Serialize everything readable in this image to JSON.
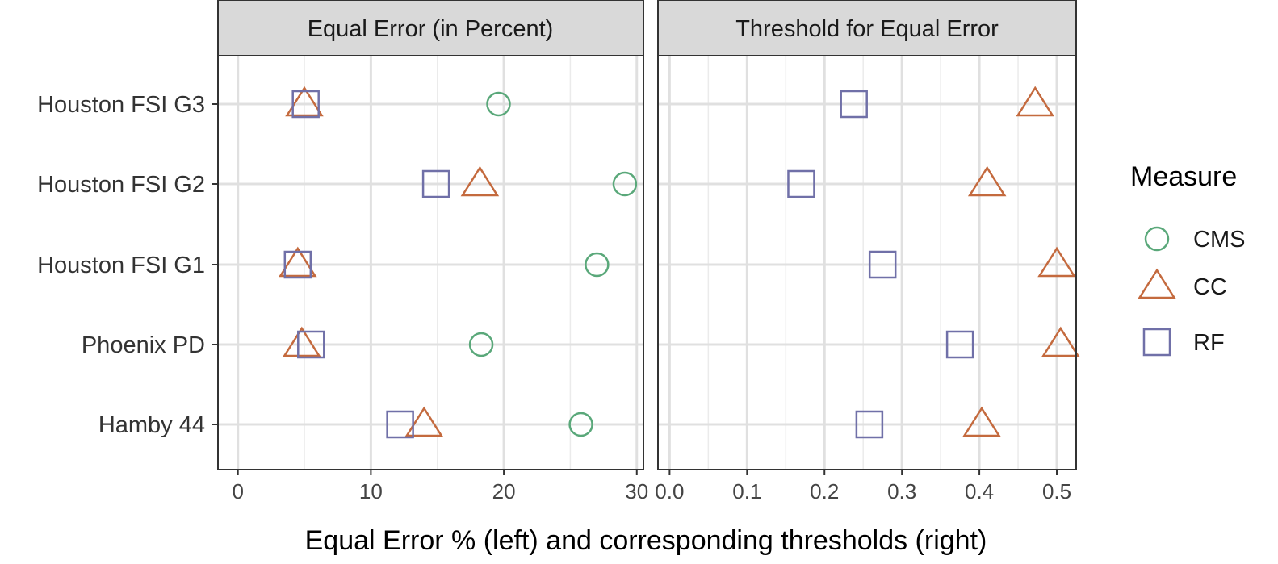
{
  "chart_data": {
    "type": "scatter",
    "panels": [
      {
        "title": "Equal Error (in Percent)",
        "xlim": [
          -1.5,
          30.5
        ],
        "ticks": [
          {
            "value": 0,
            "label": "0"
          },
          {
            "value": 10,
            "label": "10"
          },
          {
            "value": 20,
            "label": "20"
          },
          {
            "value": 30,
            "label": "30"
          }
        ],
        "minor_ticks": [
          5,
          15,
          25
        ],
        "series": [
          {
            "name": "CMS",
            "values": [
              25.8,
              18.3,
              27.0,
              29.1,
              19.6
            ]
          },
          {
            "name": "CC",
            "values": [
              14.0,
              4.8,
              4.5,
              18.2,
              5.0
            ]
          },
          {
            "name": "RF",
            "values": [
              12.2,
              5.5,
              4.5,
              14.9,
              5.1
            ]
          }
        ]
      },
      {
        "title": "Threshold for Equal Error",
        "xlim": [
          -0.015,
          0.525
        ],
        "ticks": [
          {
            "value": 0.0,
            "label": "0.0"
          },
          {
            "value": 0.1,
            "label": "0.1"
          },
          {
            "value": 0.2,
            "label": "0.2"
          },
          {
            "value": 0.3,
            "label": "0.3"
          },
          {
            "value": 0.4,
            "label": "0.4"
          },
          {
            "value": 0.5,
            "label": "0.5"
          }
        ],
        "minor_ticks": [
          0.05,
          0.15,
          0.25,
          0.35,
          0.45
        ],
        "series": [
          {
            "name": "CC",
            "values": [
              0.403,
              0.505,
              0.5,
              0.41,
              0.472
            ]
          },
          {
            "name": "RF",
            "values": [
              0.258,
              0.375,
              0.275,
              0.17,
              0.238
            ]
          }
        ]
      }
    ],
    "categories": [
      "Hamby 44",
      "Phoenix PD",
      "Houston FSI G1",
      "Houston FSI G2",
      "Houston FSI G3"
    ],
    "xlabel": "Equal Error % (left) and corresponding thresholds (right)",
    "legend": {
      "title": "Measure",
      "position": "right",
      "items": [
        {
          "name": "CMS",
          "shape": "circle",
          "color": "#5aa87a"
        },
        {
          "name": "CC",
          "shape": "triangle",
          "color": "#c46a3e"
        },
        {
          "name": "RF",
          "shape": "square",
          "color": "#7070a8"
        }
      ]
    },
    "grid": true
  }
}
